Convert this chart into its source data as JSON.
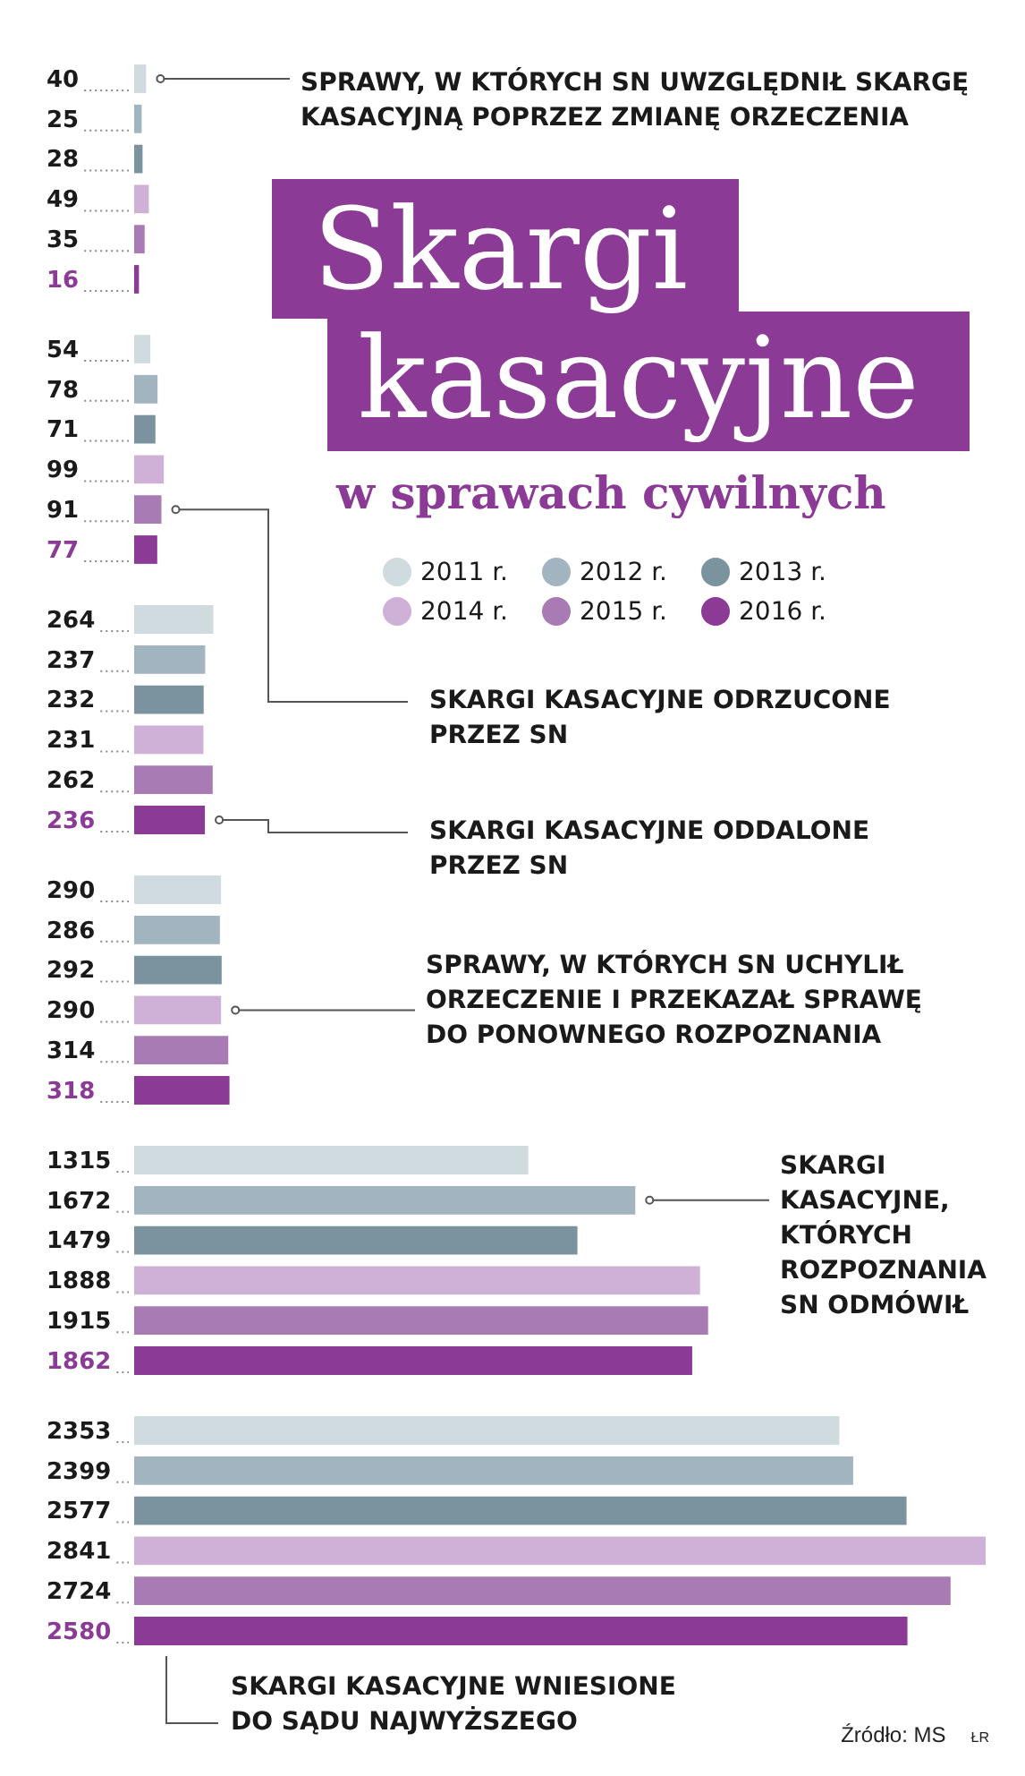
{
  "chart_data": {
    "type": "bar",
    "orientation": "horizontal",
    "title": "Skargi kasacyjne",
    "subtitle": "w sprawach cywilnych",
    "categories": [
      null,
      null,
      null,
      null,
      null,
      null
    ],
    "series": [
      {
        "name": "2011 r.",
        "color": "#cfdbdf",
        "values": [
          40,
          54,
          264,
          290,
          1315,
          2353
        ]
      },
      {
        "name": "2012 r.",
        "color": "#a2b4c0",
        "values": [
          25,
          78,
          237,
          286,
          1672,
          2399
        ]
      },
      {
        "name": "2013 r.",
        "color": "#7a939f",
        "values": [
          28,
          71,
          232,
          292,
          1479,
          2577
        ]
      },
      {
        "name": "2014 r.",
        "color": "#cfb1d8",
        "values": [
          49,
          99,
          231,
          290,
          1888,
          2841
        ]
      },
      {
        "name": "2015 r.",
        "color": "#a97bb5",
        "values": [
          35,
          91,
          262,
          314,
          1915,
          2724
        ]
      },
      {
        "name": "2016 r.",
        "color": "#8b3a96",
        "values": [
          16,
          77,
          236,
          318,
          1862,
          2580
        ]
      }
    ],
    "data_labels": true,
    "legend": "top right",
    "annotations": [
      "SPRAWY, W KTÓRYCH SN UWZGLĘDNIŁ SKARGĘ KASACYJNĄ POPRZEZ ZMIANĘ ORZECZENIA",
      "SKARGI KASACYJNE ODRZUCONE PRZEZ SN",
      "SKARGI KASACYJNE ODDALONE PRZEZ SN",
      "SPRAWY, W KTÓRYCH SN UCHYLIŁ ORZECZENIE I PRZEKAZAŁ SPRAWĘ DO PONOWNEGO ROZPOZNANIA",
      "SKARGI KASACYJNE, KTÓRYCH ROZPOZNANIA SN ODMÓWIŁ",
      "SKARGI KASACYJNE WNIESIONE DO SĄDU NAJWYŻSZEGO",
      "Źródło: MS",
      "ŁR"
    ]
  }
}
